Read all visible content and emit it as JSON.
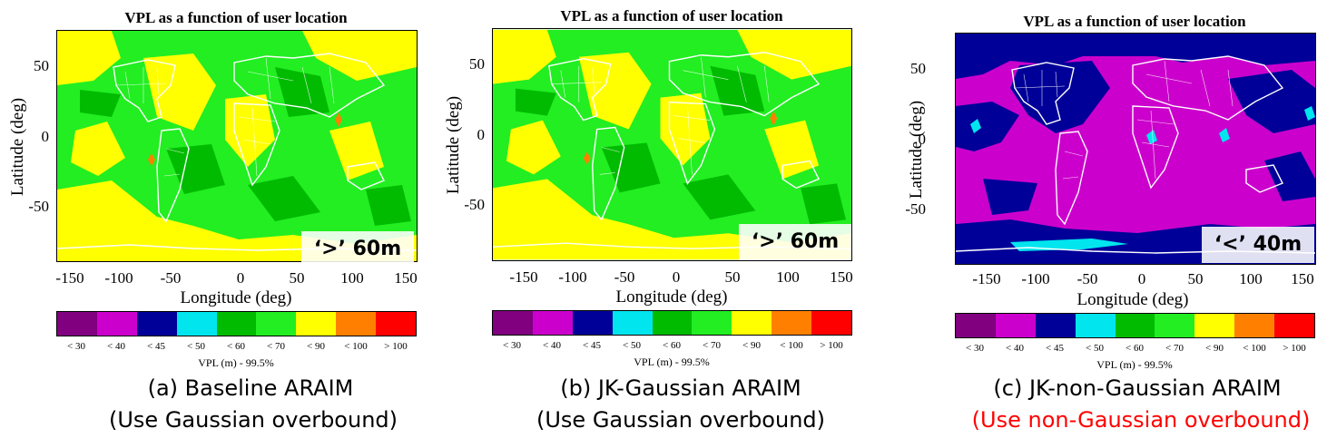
{
  "colorbar": {
    "title": "VPL (m) - 99.5%",
    "bins": [
      {
        "label": "< 30",
        "color": "#800080"
      },
      {
        "label": "< 40",
        "color": "#cc00cc"
      },
      {
        "label": "< 45",
        "color": "#000099"
      },
      {
        "label": "< 50",
        "color": "#00e5ee"
      },
      {
        "label": "< 60",
        "color": "#00bb00"
      },
      {
        "label": "< 70",
        "color": "#22ee22"
      },
      {
        "label": "< 90",
        "color": "#ffff00"
      },
      {
        "label": "< 100",
        "color": "#ff8000"
      },
      {
        "label": "> 100",
        "color": "#ff0000"
      }
    ]
  },
  "chart_data": [
    {
      "type": "heatmap",
      "title": "VPL as a function of user location",
      "xlabel": "Longitude (deg)",
      "ylabel": "Latitude (deg)",
      "xlim": [
        -180,
        165
      ],
      "ylim": [
        -90,
        75
      ],
      "xticks": [
        "-150",
        "-100",
        "-50",
        "0",
        "50",
        "100",
        "150"
      ],
      "yticks": [
        "50",
        "0",
        "-50"
      ],
      "dominant_bins": [
        "< 70",
        "< 90",
        "< 60"
      ],
      "annotation": "‘>’ 60m",
      "caption_line1": "(a) Baseline ARAIM",
      "caption_line2": "(Use Gaussian overbound)",
      "caption_line2_color": "#000000"
    },
    {
      "type": "heatmap",
      "title": "VPL as a function of user location",
      "xlabel": "Longitude (deg)",
      "ylabel": "Latitude (deg)",
      "xlim": [
        -180,
        165
      ],
      "ylim": [
        -90,
        75
      ],
      "xticks": [
        "-150",
        "-100",
        "-50",
        "0",
        "50",
        "100",
        "150"
      ],
      "yticks": [
        "50",
        "0",
        "-50"
      ],
      "dominant_bins": [
        "< 70",
        "< 90",
        "< 60"
      ],
      "annotation": "‘>’ 60m",
      "caption_line1": "(b) JK-Gaussian ARAIM",
      "caption_line2": "(Use Gaussian overbound)",
      "caption_line2_color": "#000000"
    },
    {
      "type": "heatmap",
      "title": "VPL as a function of user location",
      "xlabel": "Longitude (deg)",
      "ylabel": "Latitude (deg)",
      "xlim": [
        -180,
        165
      ],
      "ylim": [
        -90,
        75
      ],
      "xticks": [
        "-150",
        "-100",
        "-50",
        "0",
        "50",
        "100",
        "150"
      ],
      "yticks": [
        "50",
        "0",
        "-50"
      ],
      "dominant_bins": [
        "< 40",
        "< 45",
        "< 50"
      ],
      "annotation": "‘<’ 40m",
      "caption_line1": "(c) JK-non-Gaussian ARAIM",
      "caption_line2": "(Use non-Gaussian overbound)",
      "caption_line2_color": "#ff0000"
    }
  ]
}
